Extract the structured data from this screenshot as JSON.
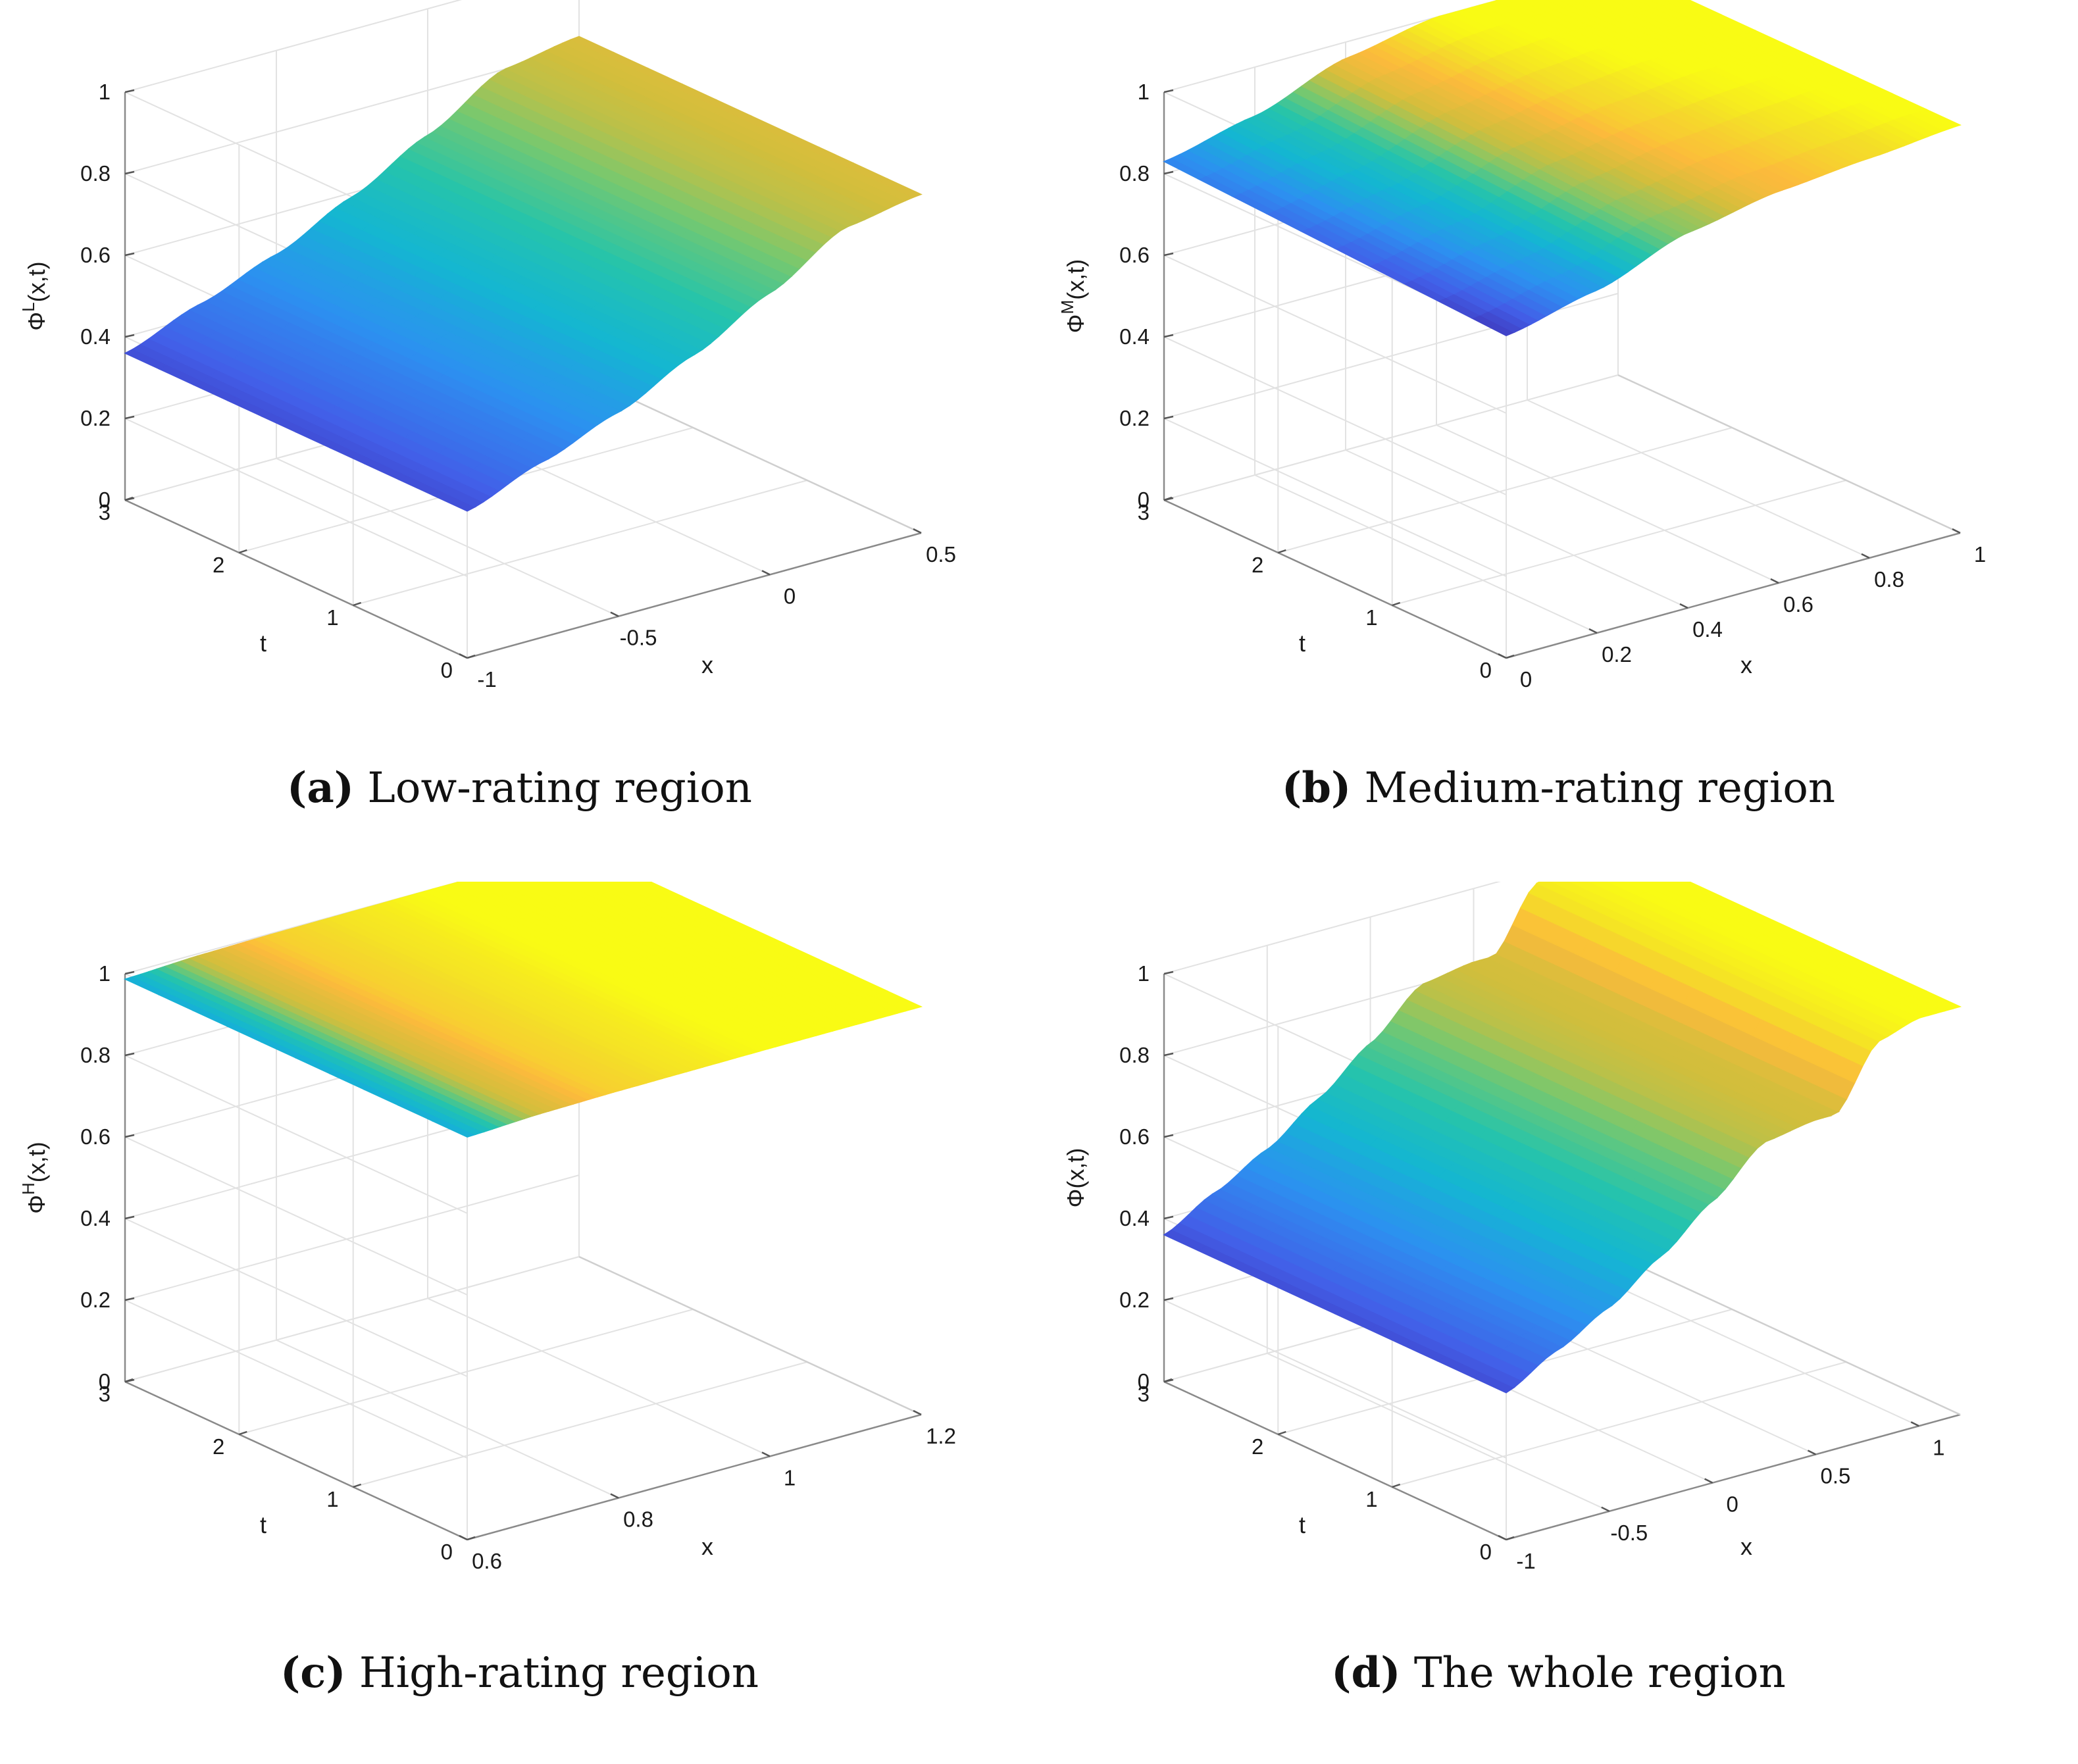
{
  "chart_data": [
    {
      "type": "surface",
      "caption_tag": "(a)",
      "caption_text": "Low-rating region",
      "xlabel": "x",
      "ylabel": "t",
      "zlabel_base": "Φ",
      "zlabel_sup": "L",
      "zlabel_rest": "(x,t)",
      "xlim": [
        -1,
        0.5
      ],
      "ylim": [
        0,
        3
      ],
      "zlim": [
        0,
        1
      ],
      "xticks": [
        -1,
        -0.5,
        0,
        0.5
      ],
      "xtick_labels": [
        "-1",
        "-0.5",
        "0",
        "0.5"
      ],
      "yticks": [
        0,
        1,
        2,
        3
      ],
      "ytick_labels": [
        "0",
        "1",
        "2",
        "3"
      ],
      "zticks": [
        0,
        0.2,
        0.4,
        0.6,
        0.8,
        1
      ],
      "ztick_labels": [
        "0",
        "0.2",
        "0.4",
        "0.6",
        "0.8",
        "1"
      ],
      "x": [
        -1,
        -0.75,
        -0.5,
        -0.25,
        0,
        0.25,
        0.5
      ],
      "z_profile": [
        0.36,
        0.43,
        0.5,
        0.59,
        0.69,
        0.8,
        0.83
      ],
      "t_trend": 0.0,
      "color_min": 0.3,
      "color_max": 1.0
    },
    {
      "type": "surface",
      "caption_tag": "(b)",
      "caption_text": "Medium-rating region",
      "xlabel": "x",
      "ylabel": "t",
      "zlabel_base": "Φ",
      "zlabel_sup": "M",
      "zlabel_rest": "(x,t)",
      "xlim": [
        0,
        1
      ],
      "ylim": [
        0,
        3
      ],
      "zlim": [
        0,
        1
      ],
      "xticks": [
        0,
        0.2,
        0.4,
        0.6,
        0.8,
        1
      ],
      "xtick_labels": [
        "0",
        "0.2",
        "0.4",
        "0.6",
        "0.8",
        "1"
      ],
      "yticks": [
        0,
        1,
        2,
        3
      ],
      "ytick_labels": [
        "0",
        "1",
        "2",
        "3"
      ],
      "zticks": [
        0,
        0.2,
        0.4,
        0.6,
        0.8,
        1
      ],
      "ztick_labels": [
        "0",
        "0.2",
        "0.4",
        "0.6",
        "0.8",
        "1"
      ],
      "x": [
        0,
        0.2,
        0.4,
        0.6,
        0.8,
        1
      ],
      "z_profile": [
        0.79,
        0.84,
        0.92,
        0.96,
        0.98,
        1.0
      ],
      "t_trend": 0.04,
      "color_min": 0.78,
      "color_max": 1.0
    },
    {
      "type": "surface",
      "caption_tag": "(c)",
      "caption_text": "High-rating region",
      "xlabel": "x",
      "ylabel": "t",
      "zlabel_base": "Φ",
      "zlabel_sup": "H",
      "zlabel_rest": "(x,t)",
      "xlim": [
        0.6,
        1.2
      ],
      "ylim": [
        0,
        3
      ],
      "zlim": [
        0,
        1
      ],
      "xticks": [
        0.6,
        0.8,
        1,
        1.2
      ],
      "xtick_labels": [
        "0.6",
        "0.8",
        "1",
        "1.2"
      ],
      "yticks": [
        0,
        1,
        2,
        3
      ],
      "ytick_labels": [
        "0",
        "1",
        "2",
        "3"
      ],
      "zticks": [
        0,
        0.2,
        0.4,
        0.6,
        0.8,
        1
      ],
      "ztick_labels": [
        "0",
        "0.2",
        "0.4",
        "0.6",
        "0.8",
        "1"
      ],
      "x": [
        0.6,
        0.7,
        0.8,
        0.9,
        1.0,
        1.1,
        1.2
      ],
      "z_profile": [
        0.987,
        0.995,
        0.998,
        0.999,
        1.0,
        1.0,
        1.0
      ],
      "t_trend": 0.0,
      "color_min": 0.98,
      "color_max": 1.0
    },
    {
      "type": "surface",
      "caption_tag": "(d)",
      "caption_text": "The whole region",
      "xlabel": "x",
      "ylabel": "t",
      "zlabel_base": "Φ",
      "zlabel_sup": "",
      "zlabel_rest": "(x,t)",
      "xlim": [
        -1,
        1.2
      ],
      "ylim": [
        0,
        3
      ],
      "zlim": [
        0,
        1
      ],
      "xticks": [
        -1,
        -0.5,
        0,
        0.5,
        1
      ],
      "xtick_labels": [
        "-1",
        "-0.5",
        "0",
        "0.5",
        "1"
      ],
      "yticks": [
        0,
        1,
        2,
        3
      ],
      "ytick_labels": [
        "0",
        "1",
        "2",
        "3"
      ],
      "zticks": [
        0,
        0.2,
        0.4,
        0.6,
        0.8,
        1
      ],
      "ztick_labels": [
        "0",
        "0.2",
        "0.4",
        "0.6",
        "0.8",
        "1"
      ],
      "x": [
        -1,
        -0.75,
        -0.5,
        -0.25,
        0,
        0.25,
        0.5,
        0.6,
        0.8,
        1,
        1.2
      ],
      "z_profile": [
        0.36,
        0.43,
        0.5,
        0.59,
        0.69,
        0.8,
        0.82,
        0.82,
        0.97,
        1.0,
        1.0
      ],
      "t_trend": 0.0,
      "color_min": 0.3,
      "color_max": 1.0
    }
  ]
}
